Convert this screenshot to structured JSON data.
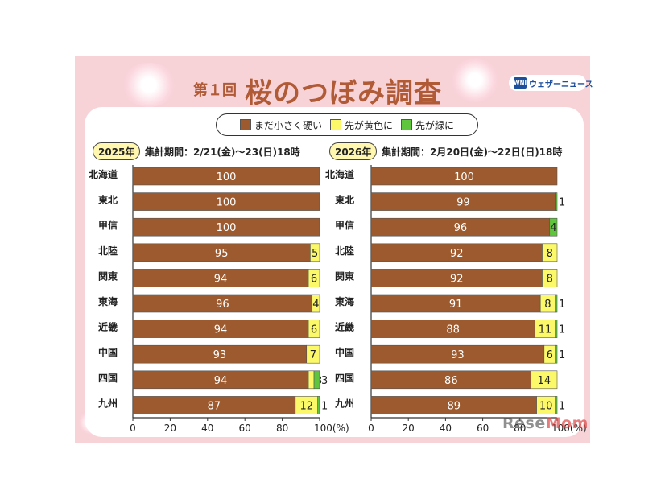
{
  "header": {
    "title_prefix": "第１回",
    "title": "桜のつぼみ調査",
    "brand": "ウェザーニュース",
    "brand_logo": "WNI"
  },
  "legend": {
    "items": [
      {
        "label": "まだ小さく硬い",
        "color": "#9c5a2e"
      },
      {
        "label": "先が黄色に",
        "color": "#fbf86a"
      },
      {
        "label": "先が緑に",
        "color": "#5fc53c"
      }
    ]
  },
  "watermark": {
    "part1": "Rese",
    "part2": "Mom"
  },
  "chart_data": [
    {
      "type": "bar",
      "orientation": "horizontal",
      "stacked": true,
      "year_label": "2025年",
      "period": "集計期間：2/21(金)～23(日)18時",
      "categories": [
        "北海道",
        "東北",
        "甲信",
        "北陸",
        "関東",
        "東海",
        "近畿",
        "中国",
        "四国",
        "九州"
      ],
      "series": [
        {
          "name": "まだ小さく硬い",
          "color": "#9c5a2e",
          "values": [
            100,
            100,
            100,
            95,
            94,
            96,
            94,
            93,
            94,
            87
          ]
        },
        {
          "name": "先が黄色に",
          "color": "#fbf86a",
          "values": [
            0,
            0,
            0,
            5,
            6,
            4,
            6,
            7,
            3,
            12
          ]
        },
        {
          "name": "先が緑に",
          "color": "#5fc53c",
          "values": [
            0,
            0,
            0,
            0,
            0,
            0,
            0,
            0,
            3,
            1
          ]
        }
      ],
      "xlim": [
        0,
        100
      ],
      "xticks": [
        "0",
        "20",
        "40",
        "60",
        "80",
        "100(%)"
      ]
    },
    {
      "type": "bar",
      "orientation": "horizontal",
      "stacked": true,
      "year_label": "2026年",
      "period": "集計期間：2月20日(金)～22日(日)18時",
      "categories": [
        "北海道",
        "東北",
        "甲信",
        "北陸",
        "関東",
        "東海",
        "近畿",
        "中国",
        "四国",
        "九州"
      ],
      "series": [
        {
          "name": "まだ小さく硬い",
          "color": "#9c5a2e",
          "values": [
            100,
            99,
            96,
            92,
            92,
            91,
            88,
            93,
            86,
            89
          ]
        },
        {
          "name": "先が黄色に",
          "color": "#fbf86a",
          "values": [
            0,
            0,
            0,
            8,
            8,
            8,
            11,
            6,
            14,
            10
          ]
        },
        {
          "name": "先が緑に",
          "color": "#5fc53c",
          "values": [
            0,
            1,
            4,
            0,
            0,
            1,
            1,
            1,
            0,
            1
          ]
        }
      ],
      "xlim": [
        0,
        100
      ],
      "xticks": [
        "0",
        "20",
        "40",
        "60",
        "80",
        "100(%)"
      ]
    }
  ]
}
